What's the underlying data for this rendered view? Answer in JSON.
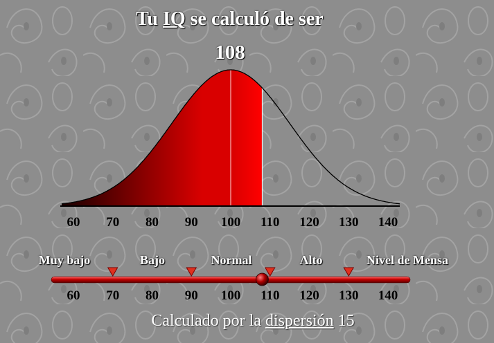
{
  "header": {
    "title_prefix": "Tu ",
    "title_iq": "IQ",
    "title_suffix": " se calculó de ser",
    "score": "108"
  },
  "chart_data": {
    "type": "area",
    "distribution": "normal",
    "mean": 100,
    "sd": 15,
    "score": 108,
    "xlim": [
      57,
      143
    ],
    "ticks": [
      60,
      70,
      80,
      90,
      100,
      110,
      120,
      130,
      140
    ]
  },
  "scale": {
    "categories": [
      "Muy bajo",
      "Bajo",
      "Normal",
      "Alto",
      "Nivel de Mensa"
    ],
    "markers": [
      70,
      90,
      110,
      130
    ],
    "ticks": [
      60,
      70,
      80,
      90,
      100,
      110,
      120,
      130,
      140
    ],
    "slider_value": 108
  },
  "footer": {
    "prefix": "Calculado por la ",
    "link": "dispersión",
    "suffix": " 15"
  },
  "colors": {
    "fill_dark": "#1a0000",
    "fill_mid": "#d90000",
    "fill_bright": "#ff0000",
    "background": "#8d8d8d",
    "marker": "#e0301e"
  }
}
